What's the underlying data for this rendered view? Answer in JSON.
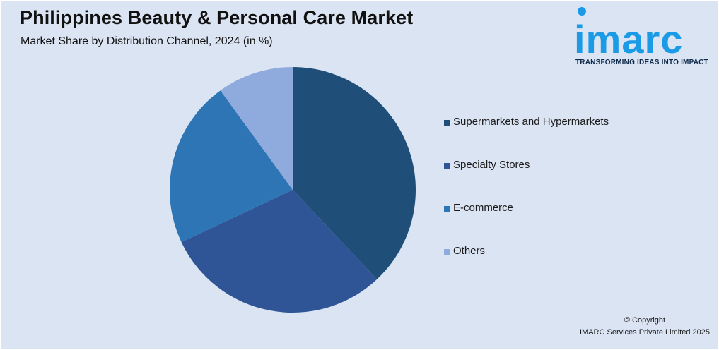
{
  "header": {
    "title": "Philippines Beauty & Personal Care Market",
    "subtitle": "Market Share by Distribution Channel, 2024 (in %)"
  },
  "logo": {
    "word": "imarc",
    "tagline": "TRANSFORMING IDEAS INTO IMPACT",
    "color": "#1b9ae6"
  },
  "footer": {
    "copyright_line1": "© Copyright",
    "copyright_line2": "IMARC Services Private Limited 2025"
  },
  "chart_data": {
    "type": "pie",
    "title": "Philippines Beauty & Personal Care Market",
    "subtitle": "Market Share by Distribution Channel, 2024 (in %)",
    "legend_position": "right",
    "start_angle": "12 o'clock, clockwise",
    "slices": [
      {
        "label": "Supermarkets and Hypermarkets",
        "value": 38,
        "color": "#1f4e79"
      },
      {
        "label": "Specialty Stores",
        "value": 30,
        "color": "#2f5597"
      },
      {
        "label": "E-commerce",
        "value": 22,
        "color": "#2e75b6"
      },
      {
        "label": "Others",
        "value": 10,
        "color": "#8faadc"
      }
    ]
  }
}
